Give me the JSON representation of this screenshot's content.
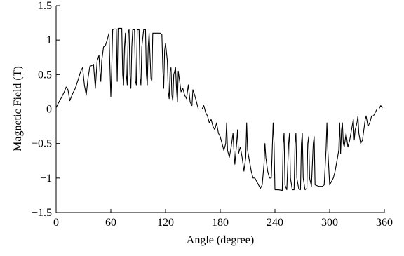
{
  "chart_data": {
    "type": "line",
    "xlabel": "Angle (degree)",
    "ylabel": "Magnetic Field (T)",
    "color": "#000000",
    "xlim": [
      0,
      360
    ],
    "xticks": [
      0,
      60,
      120,
      180,
      240,
      300,
      360
    ],
    "ylim": [
      -1.5,
      1.5
    ],
    "yticks": [
      {
        "value": -1.5,
        "label": "−1.5"
      },
      {
        "value": -1,
        "label": "−1"
      },
      {
        "value": -0.5,
        "label": "−0.5"
      },
      0,
      0.5,
      1,
      1.5
    ],
    "x": [
      0,
      3,
      6,
      9,
      11,
      13,
      15,
      18,
      21,
      24,
      27,
      29,
      31,
      33,
      35,
      37,
      39,
      41,
      43,
      45,
      47,
      48,
      49,
      50,
      52,
      54,
      56,
      58,
      59,
      60,
      61,
      62,
      64,
      66,
      67,
      68,
      70,
      72,
      73,
      74,
      75,
      76,
      77,
      78,
      79,
      80,
      81,
      82,
      83,
      84,
      86,
      87,
      88,
      89,
      91,
      92,
      93,
      94,
      96,
      98,
      99,
      100,
      101,
      102,
      104,
      105,
      106,
      110,
      114,
      116,
      117,
      118,
      119,
      120,
      122,
      123,
      124,
      125,
      126,
      127,
      128,
      129,
      131,
      132,
      133,
      134,
      135,
      137,
      139,
      141,
      143,
      145,
      147,
      149,
      150,
      152,
      154,
      156,
      158,
      160,
      162,
      164,
      166,
      168,
      170,
      172,
      174,
      176,
      178,
      180,
      182,
      184,
      186,
      187,
      188,
      190,
      192,
      194,
      195,
      196,
      198,
      199,
      200,
      202,
      204,
      206,
      208,
      209,
      210,
      212,
      214,
      216,
      218,
      220,
      222,
      224,
      226,
      228,
      229,
      230,
      232,
      234,
      236,
      238,
      239,
      240,
      244,
      248,
      249,
      250,
      251,
      253,
      255,
      256,
      257,
      259,
      261,
      262,
      263,
      264,
      266,
      268,
      269,
      270,
      271,
      273,
      275,
      276,
      277,
      278,
      280,
      282,
      283,
      284,
      288,
      292,
      294,
      296,
      297,
      298,
      300,
      302,
      304,
      306,
      308,
      310,
      311,
      312,
      313,
      314,
      315,
      316,
      318,
      320,
      322,
      324,
      326,
      327,
      328,
      330,
      331,
      332,
      334,
      336,
      338,
      339,
      340,
      342,
      344,
      346,
      348,
      350,
      352,
      354,
      356,
      358
    ],
    "values": [
      0.02,
      0.1,
      0.17,
      0.25,
      0.32,
      0.28,
      0.12,
      0.22,
      0.3,
      0.42,
      0.55,
      0.6,
      0.35,
      0.2,
      0.45,
      0.62,
      0.63,
      0.65,
      0.3,
      0.7,
      0.78,
      0.55,
      0.4,
      0.7,
      0.9,
      0.92,
      1.0,
      1.1,
      0.6,
      0.18,
      0.6,
      1.15,
      1.16,
      1.16,
      0.4,
      1.17,
      1.17,
      1.17,
      0.5,
      0.35,
      0.9,
      1.1,
      0.5,
      0.35,
      1.1,
      1.15,
      0.5,
      0.3,
      0.9,
      1.15,
      1.15,
      0.4,
      0.35,
      1.15,
      1.15,
      0.45,
      0.35,
      0.9,
      1.15,
      1.15,
      0.5,
      0.35,
      0.9,
      1.1,
      0.45,
      0.4,
      1.1,
      1.1,
      1.1,
      1.08,
      0.6,
      0.3,
      0.85,
      0.95,
      0.7,
      0.25,
      0.15,
      0.55,
      0.6,
      0.2,
      0.12,
      0.5,
      0.6,
      0.3,
      0.1,
      0.55,
      0.45,
      0.25,
      0.3,
      0.2,
      0.15,
      0.35,
      0.1,
      0.05,
      0.28,
      0.2,
      0.1,
      0,
      0,
      0,
      0.05,
      -0.05,
      -0.1,
      -0.2,
      -0.15,
      -0.25,
      -0.3,
      -0.2,
      -0.35,
      -0.4,
      -0.5,
      -0.6,
      -0.5,
      -0.2,
      -0.6,
      -0.7,
      -0.55,
      -0.35,
      -0.6,
      -0.8,
      -0.5,
      -0.3,
      -0.65,
      -0.55,
      -0.7,
      -0.9,
      -0.7,
      -0.2,
      -0.6,
      -0.75,
      -0.9,
      -1.0,
      -1.0,
      -1.05,
      -1.1,
      -1.15,
      -1.1,
      -0.8,
      -0.5,
      -0.7,
      -0.9,
      -1.0,
      -1.0,
      -0.2,
      -0.5,
      -1.17,
      -1.17,
      -1.18,
      -0.5,
      -0.35,
      -1.1,
      -1.17,
      -0.5,
      -0.35,
      -1.0,
      -1.17,
      -1.17,
      -0.5,
      -0.35,
      -1.0,
      -1.15,
      -1.17,
      -0.5,
      -0.35,
      -1.0,
      -1.17,
      -1.15,
      -0.5,
      -0.4,
      -1.0,
      -1.12,
      -0.5,
      -0.4,
      -1.1,
      -1.12,
      -1.12,
      -1.1,
      -0.6,
      -0.2,
      -0.6,
      -1.1,
      -1.05,
      -1.0,
      -0.9,
      -0.75,
      -0.6,
      -0.2,
      -0.65,
      -0.3,
      -0.2,
      -0.5,
      -0.55,
      -0.35,
      -0.55,
      -0.45,
      -0.3,
      -0.15,
      -0.45,
      -0.3,
      -0.2,
      -0.1,
      -0.35,
      -0.5,
      -0.45,
      -0.25,
      -0.15,
      -0.1,
      -0.25,
      -0.2,
      -0.1,
      -0.1,
      -0.05,
      0,
      0,
      0.05,
      0.02
    ]
  }
}
